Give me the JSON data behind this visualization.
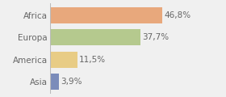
{
  "categories": [
    "Africa",
    "Europa",
    "America",
    "Asia"
  ],
  "values": [
    46.8,
    37.7,
    11.5,
    3.9
  ],
  "labels": [
    "46,8%",
    "37,7%",
    "11,5%",
    "3,9%"
  ],
  "bar_colors": [
    "#e8a87c",
    "#b5c98e",
    "#e8cc85",
    "#7b8cba"
  ],
  "background_color": "#f0f0f0",
  "xlim": [
    0,
    62
  ],
  "bar_height": 0.72,
  "label_fontsize": 7.5,
  "tick_fontsize": 7.5,
  "figsize": [
    2.8,
    1.2
  ],
  "dpi": 100
}
